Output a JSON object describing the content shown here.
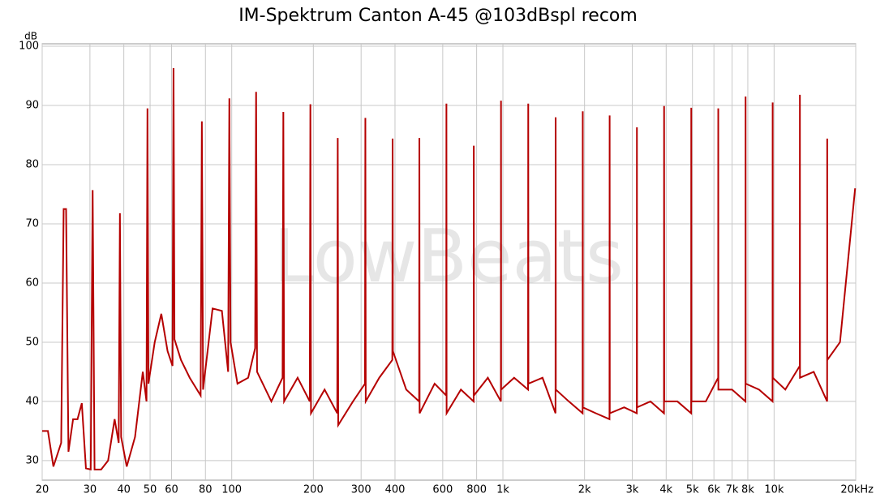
{
  "chart_data": {
    "type": "line",
    "title": "IM-Spektrum Canton A-45 @103dBspl recom",
    "ylabel": "dB",
    "watermark": "LowBeats",
    "xscale": "log",
    "grid": true,
    "color": "#b50000",
    "xlim": [
      20,
      20000
    ],
    "ylim": [
      26.7,
      100
    ],
    "xticks": [
      20,
      30,
      40,
      50,
      60,
      80,
      100,
      200,
      300,
      400,
      600,
      800,
      {
        "value": 1000,
        "label": "1k"
      },
      {
        "value": 2000,
        "label": "2k"
      },
      {
        "value": 3000,
        "label": "3k"
      },
      {
        "value": 4000,
        "label": "4k"
      },
      {
        "value": 5000,
        "label": "5k"
      },
      {
        "value": 6000,
        "label": "6k"
      },
      {
        "value": 7000,
        "label": "7k"
      },
      {
        "value": 8000,
        "label": "8k"
      },
      {
        "value": 10000,
        "label": "10k"
      },
      {
        "value": 20000,
        "label": "20kHz"
      }
    ],
    "yticks": [
      30,
      40,
      50,
      60,
      70,
      80,
      90,
      100
    ],
    "x": [
      20,
      21,
      22,
      23.5,
      24,
      24.5,
      25,
      26,
      27,
      28,
      29,
      30.2,
      30.7,
      31.2,
      33,
      35,
      37,
      38.3,
      38.7,
      39.1,
      41,
      44,
      47,
      48.5,
      48.9,
      49.3,
      52,
      55,
      58,
      60.5,
      61,
      61.5,
      65,
      70,
      76.8,
      77.6,
      78.4,
      85,
      92,
      97,
      98,
      99,
      105,
      115,
      122,
      123,
      124,
      140,
      154,
      155,
      156,
      175,
      194,
      195,
      196,
      220,
      245,
      246,
      247,
      280,
      310,
      311,
      312,
      350,
      391,
      392,
      393,
      440,
      491,
      492,
      493,
      560,
      618,
      619,
      620,
      700,
      780,
      781,
      782,
      880,
      983,
      984,
      985,
      1100,
      1238,
      1240,
      1242,
      1400,
      1563,
      1565,
      1567,
      1750,
      1968,
      1970,
      1972,
      2200,
      2472,
      2475,
      2478,
      2800,
      3117,
      3120,
      3123,
      3500,
      3926,
      3930,
      3934,
      4400,
      4945,
      4950,
      4955,
      5600,
      6220,
      6225,
      6230,
      7000,
      7843,
      7850,
      7857,
      8800,
      9870,
      9880,
      9890,
      11000,
      12440,
      12450,
      12460,
      14000,
      15690,
      15700,
      15710,
      17500,
      19900
    ],
    "series": [
      {
        "color": "#b50000",
        "values": [
          35,
          35,
          29,
          33,
          72.5,
          72.5,
          31.5,
          37,
          37,
          39.7,
          28.7,
          28.5,
          75.7,
          28.5,
          28.5,
          30,
          37,
          33,
          71.8,
          34,
          29,
          34,
          45,
          40,
          89.5,
          43,
          50,
          54.8,
          48.5,
          46,
          96.3,
          50.5,
          47,
          44,
          41,
          87.3,
          42,
          55.7,
          55.3,
          45,
          91.2,
          50,
          43,
          44,
          49,
          92.3,
          45,
          40,
          44,
          88.9,
          40,
          44,
          40,
          90.2,
          38,
          42,
          38,
          84.5,
          36,
          40,
          43,
          87.9,
          40,
          44,
          47,
          84.4,
          48.5,
          42,
          40,
          84.5,
          38,
          43,
          41,
          90.3,
          38,
          42,
          40,
          83.2,
          41,
          44,
          40,
          90.8,
          42,
          44,
          42,
          90.3,
          43,
          44,
          38,
          88,
          42,
          40,
          38,
          89,
          39,
          38,
          37,
          88.3,
          38,
          39,
          38,
          86.3,
          39,
          40,
          38,
          89.9,
          40,
          40,
          38,
          89.6,
          40,
          40,
          44,
          89.5,
          42,
          42,
          40,
          91.5,
          43,
          42,
          40,
          90.5,
          44,
          42,
          46,
          91.8,
          44,
          45,
          40,
          84.4,
          47,
          50,
          76
        ]
      }
    ]
  }
}
